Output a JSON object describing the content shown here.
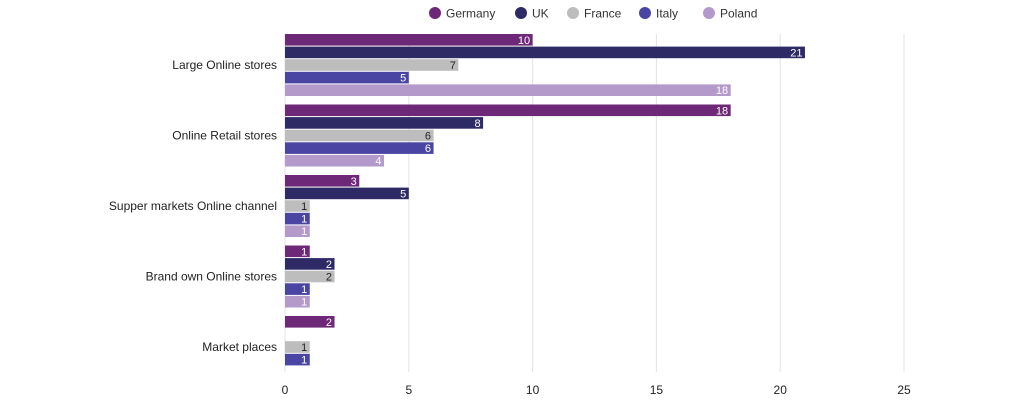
{
  "chart_data": {
    "type": "bar",
    "orientation": "horizontal",
    "categories": [
      "Large Online stores",
      "Online Retail stores",
      "Supper markets Online channel",
      "Brand own Online stores",
      "Market places"
    ],
    "series": [
      {
        "name": "Germany",
        "color": "#6e2878",
        "label_color": "#ffffff",
        "values": [
          10,
          18,
          3,
          1,
          2
        ]
      },
      {
        "name": "UK",
        "color": "#2d2a66",
        "label_color": "#ffffff",
        "values": [
          21,
          8,
          5,
          2,
          null
        ]
      },
      {
        "name": "France",
        "color": "#bdbdbd",
        "label_color": "#222222",
        "values": [
          7,
          6,
          1,
          2,
          1
        ]
      },
      {
        "name": "Italy",
        "color": "#4a45a3",
        "label_color": "#ffffff",
        "values": [
          5,
          6,
          1,
          1,
          1
        ]
      },
      {
        "name": "Poland",
        "color": "#b39acb",
        "label_color": "#ffffff",
        "values": [
          18,
          4,
          1,
          1,
          null
        ]
      }
    ],
    "xlim": [
      0,
      25
    ],
    "xticks": [
      0,
      5,
      10,
      15,
      20,
      25
    ],
    "grid": true,
    "legend_position": "top-center"
  }
}
